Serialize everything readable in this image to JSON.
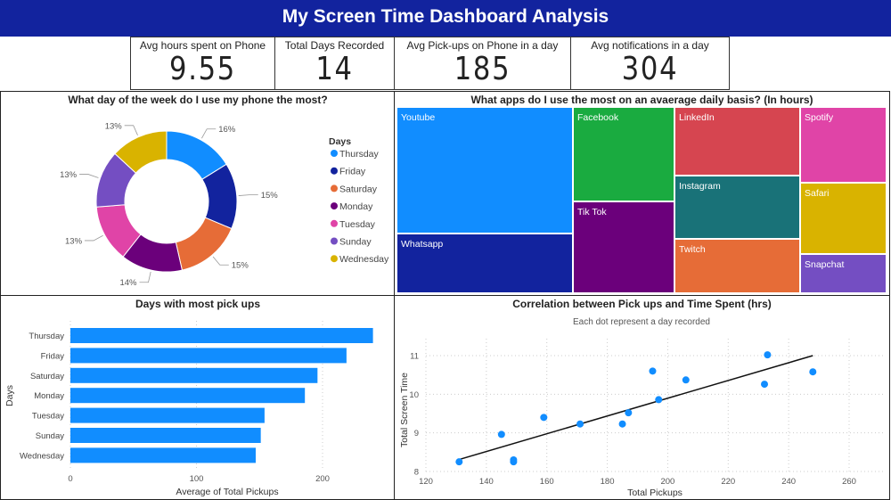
{
  "header": {
    "title": "My Screen Time Dashboard Analysis"
  },
  "kpis": [
    {
      "label": "Avg hours spent on Phone",
      "value": "9.55"
    },
    {
      "label": "Total Days Recorded",
      "value": "14"
    },
    {
      "label": "Avg Pick-ups on Phone in a day",
      "value": "185"
    },
    {
      "label": "Avg notifications in a day",
      "value": "304"
    }
  ],
  "treemap": {
    "title": "What apps do I use the most on an avaerage daily basis? (In hours)",
    "tiles": [
      {
        "label": "Youtube",
        "color": "#118DFF"
      },
      {
        "label": "Whatsapp",
        "color": "#12239E"
      },
      {
        "label": "Facebook",
        "color": "#1AAB40"
      },
      {
        "label": "Tik Tok",
        "color": "#6B007B"
      },
      {
        "label": "LinkedIn",
        "color": "#D64550"
      },
      {
        "label": "Instagram",
        "color": "#197278"
      },
      {
        "label": "Twitch",
        "color": "#E66C37"
      },
      {
        "label": "Spotify",
        "color": "#E044A7"
      },
      {
        "label": "Safari",
        "color": "#D9B300"
      },
      {
        "label": "Snapchat",
        "color": "#744EC2"
      }
    ]
  },
  "chart_data": [
    {
      "type": "pie",
      "title": "What day of the week do I use my phone the most?",
      "legend_title": "Days",
      "legend_position": "right",
      "donut": true,
      "categories": [
        "Thursday",
        "Friday",
        "Saturday",
        "Monday",
        "Tuesday",
        "Sunday",
        "Wednesday"
      ],
      "values": [
        16,
        15,
        15,
        14,
        13,
        13,
        13
      ],
      "labels": [
        "16%",
        "15%",
        "15%",
        "14%",
        "13%",
        "13%",
        "13%"
      ],
      "colors": [
        "#118DFF",
        "#12239E",
        "#E66C37",
        "#6B007B",
        "#E044A7",
        "#744EC2",
        "#D9B300"
      ]
    },
    {
      "type": "bar",
      "orientation": "horizontal",
      "title": "Days with most pick ups",
      "xlabel": "Average of Total Pickups",
      "ylabel": "Days",
      "categories": [
        "Thursday",
        "Friday",
        "Saturday",
        "Monday",
        "Tuesday",
        "Sunday",
        "Wednesday"
      ],
      "values": [
        240,
        219,
        196,
        186,
        154,
        151,
        147
      ],
      "xlim": [
        0,
        250
      ],
      "xticks": [
        "0",
        "100",
        "200"
      ],
      "color": "#118DFF",
      "grid": true
    },
    {
      "type": "scatter",
      "title": "Correlation between Pick ups and Time Spent (hrs)",
      "subtitle": "Each dot represent a day recorded",
      "xlabel": "Total Pickups",
      "ylabel": "Total Screen Time",
      "xlim": [
        120,
        260
      ],
      "ylim": [
        8,
        11.3
      ],
      "xticks": [
        "120",
        "140",
        "160",
        "180",
        "200",
        "220",
        "240",
        "260"
      ],
      "yticks": [
        "8",
        "9",
        "10",
        "11"
      ],
      "grid": true,
      "color": "#118DFF",
      "points": [
        [
          131,
          8.25
        ],
        [
          145,
          8.96
        ],
        [
          149,
          8.25
        ],
        [
          149,
          8.3
        ],
        [
          159,
          9.4
        ],
        [
          171,
          9.23
        ],
        [
          185,
          9.23
        ],
        [
          187,
          9.52
        ],
        [
          195,
          10.6
        ],
        [
          197,
          9.86
        ],
        [
          206,
          10.37
        ],
        [
          232,
          10.26
        ],
        [
          233,
          11.02
        ],
        [
          248,
          10.58
        ]
      ],
      "trendline": [
        [
          131,
          8.31
        ],
        [
          248,
          11.0
        ]
      ]
    }
  ]
}
